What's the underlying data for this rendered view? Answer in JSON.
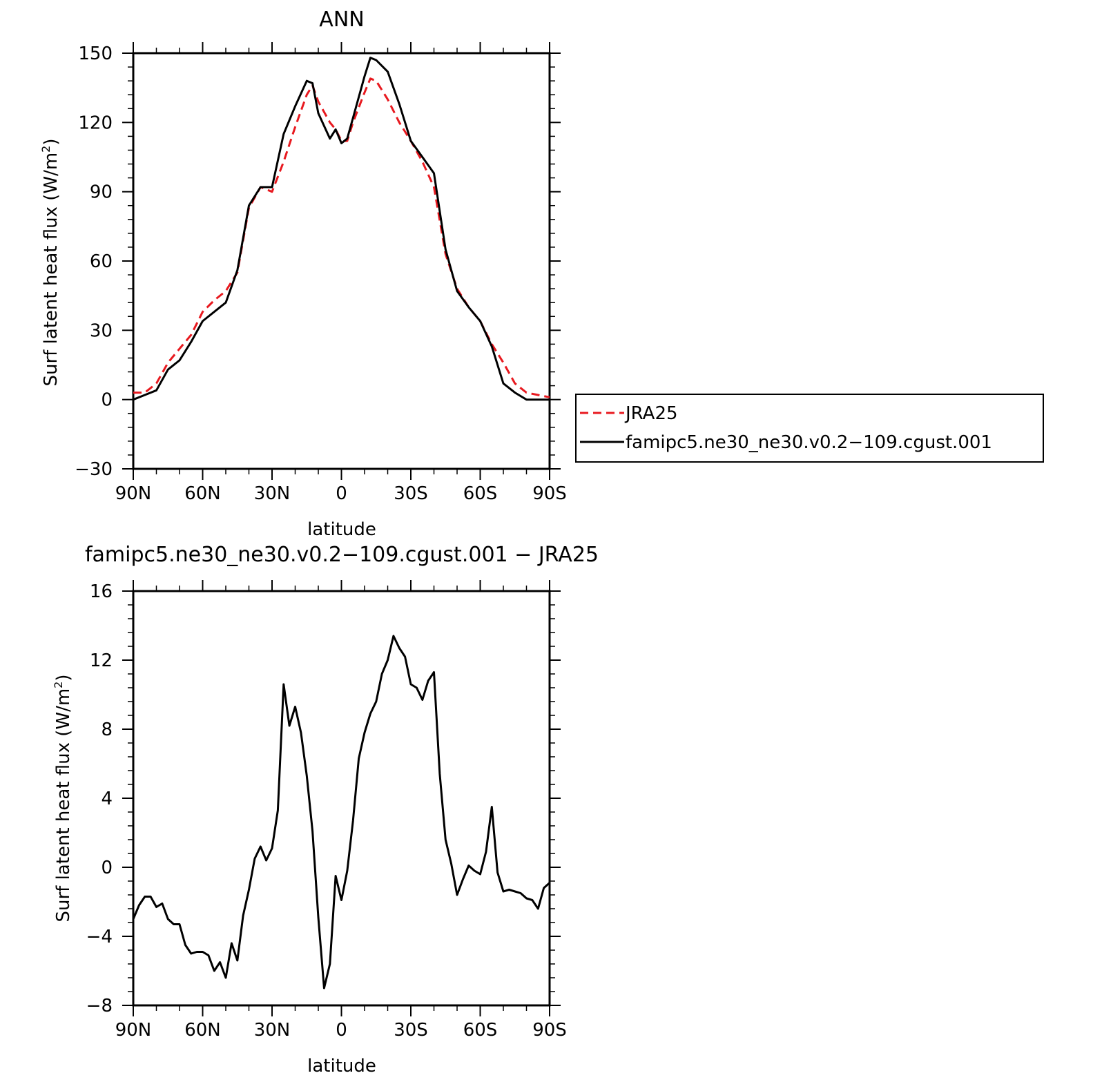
{
  "chart_data": [
    {
      "type": "line",
      "title": "ANN",
      "xlabel": "latitude",
      "ylabel": "Surf latent heat flux (W/m²)",
      "ylabel_main": "Surf latent heat flux (W/m",
      "ylabel_sup": "2",
      "ylabel_end": ")",
      "xlim": [
        90,
        -90
      ],
      "ylim": [
        -30,
        150
      ],
      "x_ticks": [
        90,
        60,
        30,
        0,
        -30,
        -60,
        -90
      ],
      "x_tick_labels": [
        "90N",
        "60N",
        "30N",
        "0",
        "30S",
        "60S",
        "90S"
      ],
      "y_ticks": [
        -30,
        0,
        30,
        60,
        90,
        120,
        150
      ],
      "y_tick_labels": [
        "−30",
        "0",
        "30",
        "60",
        "90",
        "120",
        "150"
      ],
      "legend": {
        "position": "right"
      },
      "series": [
        {
          "name": "JRA25",
          "color": "#e8191f",
          "dash": "dashed",
          "x": [
            90,
            85,
            80,
            75,
            70,
            65,
            60,
            55,
            50,
            45,
            40,
            35,
            30,
            25,
            20,
            15,
            12.5,
            10,
            5,
            2.5,
            0,
            -2.5,
            -5,
            -10,
            -12.5,
            -15,
            -20,
            -25,
            -30,
            -35,
            -40,
            -45,
            -50,
            -55,
            -60,
            -65,
            -70,
            -75,
            -80,
            -85,
            -90
          ],
          "values": [
            3,
            3,
            7,
            16,
            22,
            28,
            38,
            43,
            47,
            55,
            83,
            92,
            90,
            103,
            118,
            132,
            136,
            129,
            120,
            117,
            112,
            112,
            120,
            133,
            139,
            138,
            130,
            120,
            112,
            103,
            92,
            63,
            48,
            40,
            34,
            24,
            16,
            7,
            3,
            2,
            1
          ]
        },
        {
          "name": "famipc5.ne30_ne30.v0.2−109.cgust.001",
          "color": "#000000",
          "dash": "solid",
          "x": [
            90,
            85,
            80,
            75,
            70,
            65,
            60,
            55,
            50,
            45,
            40,
            35,
            30,
            25,
            20,
            15,
            12.5,
            10,
            5,
            2.5,
            0,
            -2.5,
            -5,
            -10,
            -12.5,
            -15,
            -20,
            -25,
            -30,
            -35,
            -40,
            -45,
            -50,
            -55,
            -60,
            -65,
            -70,
            -75,
            -80,
            -85,
            -90
          ],
          "values": [
            0,
            2,
            4,
            13,
            17,
            25,
            34,
            38,
            42,
            56,
            84,
            92,
            92,
            115,
            127,
            138,
            137,
            124,
            113,
            117,
            111,
            113,
            122,
            140,
            148,
            147,
            142,
            128,
            112,
            105,
            98,
            65,
            47,
            40,
            34,
            23,
            7,
            3,
            0,
            0,
            0
          ]
        }
      ]
    },
    {
      "type": "line",
      "title": "famipc5.ne30_ne30.v0.2−109.cgust.001  −  JRA25",
      "xlabel": "latitude",
      "ylabel": "Surf latent heat flux (W/m²)",
      "ylabel_main": "Surf latent heat flux (W/m",
      "ylabel_sup": "2",
      "ylabel_end": ")",
      "xlim": [
        90,
        -90
      ],
      "ylim": [
        -8,
        16
      ],
      "x_ticks": [
        90,
        60,
        30,
        0,
        -30,
        -60,
        -90
      ],
      "x_tick_labels": [
        "90N",
        "60N",
        "30N",
        "0",
        "30S",
        "60S",
        "90S"
      ],
      "y_ticks": [
        -8,
        -4,
        0,
        4,
        8,
        12,
        16
      ],
      "y_tick_labels": [
        "−8",
        "−4",
        "0",
        "4",
        "8",
        "12",
        "16"
      ],
      "series": [
        {
          "name": "famipc5.ne30_ne30.v0.2−109.cgust.001 − JRA25",
          "color": "#000000",
          "dash": "solid",
          "x": [
            90,
            87.5,
            85,
            82.5,
            80,
            77.5,
            75,
            72.5,
            70,
            67.5,
            65,
            62.5,
            60,
            57.5,
            55,
            52.5,
            50,
            47.5,
            45,
            42.5,
            40,
            37.5,
            35,
            32.5,
            30,
            27.5,
            25,
            22.5,
            20,
            17.5,
            15,
            12.5,
            10,
            7.5,
            5,
            2.5,
            0,
            -2.5,
            -5,
            -7.5,
            -10,
            -12.5,
            -15,
            -17.5,
            -20,
            -22.5,
            -25,
            -27.5,
            -30,
            -32.5,
            -35,
            -37.5,
            -40,
            -42.5,
            -45,
            -47.5,
            -50,
            -52.5,
            -55,
            -57.5,
            -60,
            -62.5,
            -65,
            -67.5,
            -70,
            -72.5,
            -75,
            -77.5,
            -80,
            -82.5,
            -85,
            -87.5,
            -90
          ],
          "values": [
            -3,
            -2.2,
            -1.7,
            -1.7,
            -2.3,
            -2.1,
            -3,
            -3.3,
            -3.3,
            -4.5,
            -5,
            -4.9,
            -4.9,
            -5.1,
            -6,
            -5.5,
            -6.4,
            -4.4,
            -5.4,
            -2.8,
            -1.3,
            0.5,
            1.2,
            0.4,
            1.1,
            3.3,
            10.6,
            8.2,
            9.3,
            7.8,
            5.3,
            2.1,
            -2.9,
            -7,
            -5.6,
            -0.5,
            -1.9,
            -0.2,
            2.7,
            6.3,
            7.8,
            8.9,
            9.6,
            11.2,
            12,
            13.4,
            12.7,
            12.2,
            10.6,
            10.4,
            9.7,
            10.8,
            11.3,
            5.4,
            1.6,
            0.2,
            -1.6,
            -0.7,
            0.1,
            -0.2,
            -0.4,
            0.9,
            3.5,
            -0.3,
            -1.4,
            -1.3,
            -1.4,
            -1.5,
            -1.8,
            -1.9,
            -2.4,
            -1.2,
            -0.9
          ]
        }
      ]
    }
  ]
}
